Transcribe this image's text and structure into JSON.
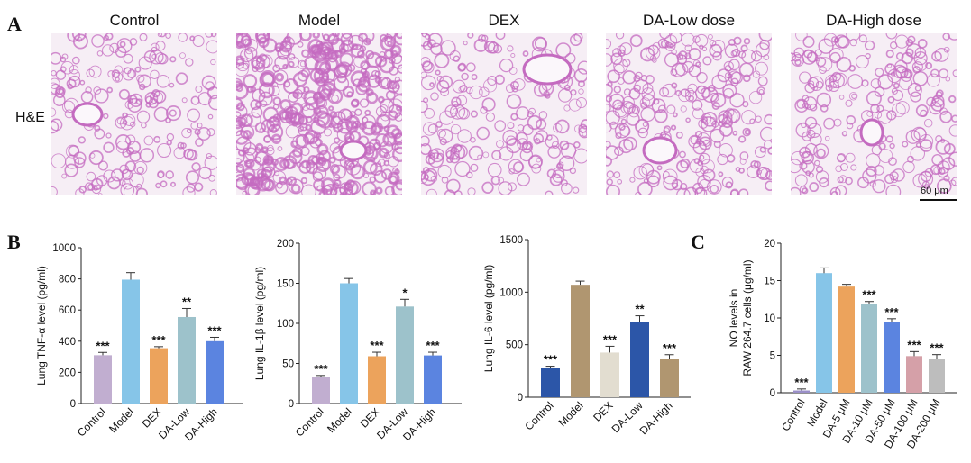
{
  "panels": {
    "a": "A",
    "b": "B",
    "c": "C"
  },
  "histology": {
    "stain_label": "H&E",
    "groups": [
      "Control",
      "Model",
      "DEX",
      "DA-Low dose",
      "DA-High dose"
    ],
    "scale_bar": "60 μm",
    "tissue_color": "#c46bc0",
    "background_color": "#f6eef5"
  },
  "chart_data": [
    {
      "type": "bar",
      "title": "",
      "ylabel": "Lung TNF-α level (pg/ml)",
      "xlabel": "",
      "categories": [
        "Control",
        "Model",
        "DEX",
        "DA-Low",
        "DA-High"
      ],
      "values": [
        310,
        795,
        355,
        555,
        400
      ],
      "errors": [
        18,
        45,
        10,
        55,
        25
      ],
      "significance": [
        "***",
        "",
        "***",
        "**",
        "***"
      ],
      "colors": [
        "#c1aed0",
        "#86c5e8",
        "#eca35c",
        "#9dc2cb",
        "#5b84e0"
      ],
      "ylim": [
        0,
        1000
      ],
      "yticks": [
        0,
        200,
        400,
        600,
        800,
        1000
      ]
    },
    {
      "type": "bar",
      "title": "",
      "ylabel": "Lung IL-1β level (pg/ml)",
      "xlabel": "",
      "categories": [
        "Control",
        "Model",
        "DEX",
        "DA-Low",
        "DA-High"
      ],
      "values": [
        33,
        150,
        59,
        121,
        60
      ],
      "errors": [
        2,
        6,
        5,
        9,
        4
      ],
      "significance": [
        "***",
        "",
        "***",
        "*",
        "***"
      ],
      "colors": [
        "#c1aed0",
        "#86c5e8",
        "#eca35c",
        "#9dc2cb",
        "#5b84e0"
      ],
      "ylim": [
        0,
        200
      ],
      "yticks": [
        0,
        50,
        100,
        150,
        200
      ]
    },
    {
      "type": "bar",
      "title": "",
      "ylabel": "Lung IL-6 level (pg/ml)",
      "xlabel": "",
      "categories": [
        "Control",
        "Model",
        "DEX",
        "DA-Low",
        "DA-High"
      ],
      "values": [
        275,
        1070,
        425,
        715,
        360
      ],
      "errors": [
        20,
        35,
        60,
        60,
        45
      ],
      "significance": [
        "***",
        "",
        "***",
        "**",
        "***"
      ],
      "colors": [
        "#2c56a8",
        "#b09670",
        "#e2ddd0",
        "#2c56a8",
        "#b09670"
      ],
      "ylim": [
        0,
        1500
      ],
      "yticks": [
        0,
        500,
        1000,
        1500
      ]
    },
    {
      "type": "bar",
      "title": "",
      "ylabel": "NO levels in RAW 264.7 cells (μg/ml)",
      "xlabel": "",
      "categories": [
        "Control",
        "Model",
        "DA-5 μM",
        "DA-10 μM",
        "DA-50 μM",
        "DA-100 μM",
        "DA-200 μM"
      ],
      "values": [
        0.3,
        16.0,
        14.2,
        11.9,
        9.5,
        4.9,
        4.5
      ],
      "errors": [
        0.2,
        0.7,
        0.3,
        0.3,
        0.4,
        0.6,
        0.6
      ],
      "significance": [
        "***",
        "",
        "",
        "***",
        "***",
        "***",
        "***"
      ],
      "colors": [
        "#9a8fc8",
        "#86c5e8",
        "#eca35c",
        "#9dc2cb",
        "#5b84e0",
        "#d5a0a8",
        "#bdbdbd"
      ],
      "ylim": [
        0,
        20
      ],
      "yticks": [
        0,
        5,
        10,
        15,
        20
      ]
    }
  ]
}
